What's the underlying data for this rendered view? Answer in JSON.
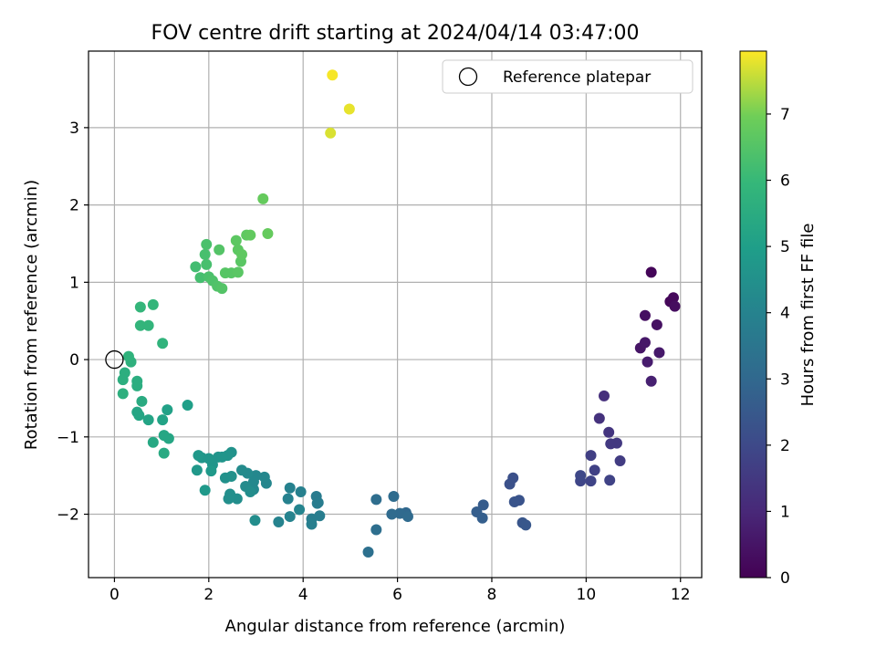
{
  "chart_data": {
    "type": "scatter",
    "title": "FOV centre drift starting at 2024/04/14 03:47:00",
    "xlabel": "Angular distance from reference (arcmin)",
    "ylabel": "Rotation from reference (arcmin)",
    "xlim": [
      -0.55,
      12.45
    ],
    "ylim": [
      -2.82,
      3.99
    ],
    "xticks": [
      0,
      2,
      4,
      6,
      8,
      10,
      12
    ],
    "yticks": [
      -2,
      -1,
      0,
      1,
      2,
      3
    ],
    "grid": true,
    "legend": {
      "placement": "top-right",
      "entries": [
        "Reference platepar"
      ]
    },
    "reference_point": {
      "x": 0,
      "y": 0
    },
    "colorbar": {
      "label": "Hours from first FF file",
      "colormap": "viridis",
      "range": [
        0,
        7.95
      ],
      "ticks": [
        0,
        1,
        2,
        3,
        4,
        5,
        6,
        7
      ]
    },
    "points": [
      {
        "x": 11.38,
        "y": 1.13,
        "h": 0.1
      },
      {
        "x": 11.78,
        "y": 0.75,
        "h": 0.15
      },
      {
        "x": 11.85,
        "y": 0.8,
        "h": 0.2
      },
      {
        "x": 11.88,
        "y": 0.69,
        "h": 0.3
      },
      {
        "x": 11.25,
        "y": 0.57,
        "h": 0.35
      },
      {
        "x": 11.5,
        "y": 0.45,
        "h": 0.4
      },
      {
        "x": 11.15,
        "y": 0.15,
        "h": 0.5
      },
      {
        "x": 11.25,
        "y": 0.22,
        "h": 0.55
      },
      {
        "x": 11.55,
        "y": 0.09,
        "h": 0.6
      },
      {
        "x": 11.3,
        "y": -0.03,
        "h": 0.7
      },
      {
        "x": 11.38,
        "y": -0.28,
        "h": 0.8
      },
      {
        "x": 10.38,
        "y": -0.47,
        "h": 1.2
      },
      {
        "x": 10.28,
        "y": -0.76,
        "h": 1.3
      },
      {
        "x": 10.48,
        "y": -0.94,
        "h": 1.4
      },
      {
        "x": 10.65,
        "y": -1.08,
        "h": 1.5
      },
      {
        "x": 10.52,
        "y": -1.09,
        "h": 1.5
      },
      {
        "x": 10.72,
        "y": -1.31,
        "h": 1.6
      },
      {
        "x": 10.1,
        "y": -1.24,
        "h": 1.7
      },
      {
        "x": 10.18,
        "y": -1.43,
        "h": 1.75
      },
      {
        "x": 10.5,
        "y": -1.56,
        "h": 1.8
      },
      {
        "x": 10.1,
        "y": -1.57,
        "h": 1.85
      },
      {
        "x": 9.88,
        "y": -1.57,
        "h": 1.9
      },
      {
        "x": 9.88,
        "y": -1.5,
        "h": 1.95
      },
      {
        "x": 8.45,
        "y": -1.53,
        "h": 2.2
      },
      {
        "x": 8.38,
        "y": -1.61,
        "h": 2.25
      },
      {
        "x": 8.58,
        "y": -1.82,
        "h": 2.3
      },
      {
        "x": 8.48,
        "y": -1.84,
        "h": 2.35
      },
      {
        "x": 8.65,
        "y": -2.11,
        "h": 2.4
      },
      {
        "x": 8.72,
        "y": -2.14,
        "h": 2.45
      },
      {
        "x": 7.82,
        "y": -1.88,
        "h": 2.6
      },
      {
        "x": 7.68,
        "y": -1.97,
        "h": 2.65
      },
      {
        "x": 7.8,
        "y": -2.05,
        "h": 2.7
      },
      {
        "x": 6.18,
        "y": -1.98,
        "h": 3.0
      },
      {
        "x": 6.05,
        "y": -1.99,
        "h": 3.05
      },
      {
        "x": 5.88,
        "y": -2.0,
        "h": 3.1
      },
      {
        "x": 6.22,
        "y": -2.03,
        "h": 3.1
      },
      {
        "x": 5.92,
        "y": -1.77,
        "h": 3.15
      },
      {
        "x": 5.55,
        "y": -1.81,
        "h": 3.2
      },
      {
        "x": 5.55,
        "y": -2.2,
        "h": 3.25
      },
      {
        "x": 5.38,
        "y": -2.49,
        "h": 3.3
      },
      {
        "x": 4.28,
        "y": -1.77,
        "h": 3.7
      },
      {
        "x": 4.32,
        "y": -1.85,
        "h": 3.75
      },
      {
        "x": 4.3,
        "y": -1.86,
        "h": 3.75
      },
      {
        "x": 4.35,
        "y": -2.02,
        "h": 3.8
      },
      {
        "x": 4.18,
        "y": -2.06,
        "h": 3.8
      },
      {
        "x": 4.18,
        "y": -2.13,
        "h": 3.85
      },
      {
        "x": 3.95,
        "y": -1.71,
        "h": 3.9
      },
      {
        "x": 3.72,
        "y": -1.66,
        "h": 3.95
      },
      {
        "x": 3.68,
        "y": -1.8,
        "h": 3.95
      },
      {
        "x": 3.72,
        "y": -2.03,
        "h": 4.0
      },
      {
        "x": 3.48,
        "y": -2.1,
        "h": 4.0
      },
      {
        "x": 3.92,
        "y": -1.94,
        "h": 4.05
      },
      {
        "x": 3.22,
        "y": -1.6,
        "h": 4.1
      },
      {
        "x": 3.18,
        "y": -1.52,
        "h": 4.15
      },
      {
        "x": 3.0,
        "y": -1.5,
        "h": 4.15
      },
      {
        "x": 2.95,
        "y": -1.58,
        "h": 4.2
      },
      {
        "x": 2.95,
        "y": -1.68,
        "h": 4.2
      },
      {
        "x": 2.82,
        "y": -1.47,
        "h": 4.25
      },
      {
        "x": 2.7,
        "y": -1.43,
        "h": 4.3
      },
      {
        "x": 2.78,
        "y": -1.64,
        "h": 4.3
      },
      {
        "x": 2.88,
        "y": -1.71,
        "h": 4.35
      },
      {
        "x": 2.98,
        "y": -2.08,
        "h": 4.35
      },
      {
        "x": 2.6,
        "y": -1.8,
        "h": 4.4
      },
      {
        "x": 2.45,
        "y": -1.74,
        "h": 4.45
      },
      {
        "x": 2.42,
        "y": -1.8,
        "h": 4.45
      },
      {
        "x": 2.48,
        "y": -1.51,
        "h": 4.5
      },
      {
        "x": 2.35,
        "y": -1.53,
        "h": 4.5
      },
      {
        "x": 2.48,
        "y": -1.2,
        "h": 4.55
      },
      {
        "x": 2.4,
        "y": -1.24,
        "h": 4.6
      },
      {
        "x": 2.2,
        "y": -1.26,
        "h": 4.6
      },
      {
        "x": 2.28,
        "y": -1.26,
        "h": 4.65
      },
      {
        "x": 2.08,
        "y": -1.36,
        "h": 4.65
      },
      {
        "x": 2.0,
        "y": -1.28,
        "h": 4.7
      },
      {
        "x": 1.85,
        "y": -1.27,
        "h": 4.7
      },
      {
        "x": 1.78,
        "y": -1.24,
        "h": 4.75
      },
      {
        "x": 1.75,
        "y": -1.43,
        "h": 4.75
      },
      {
        "x": 2.05,
        "y": -1.44,
        "h": 4.8
      },
      {
        "x": 1.92,
        "y": -1.69,
        "h": 4.8
      },
      {
        "x": 1.55,
        "y": -0.59,
        "h": 5.0
      },
      {
        "x": 1.12,
        "y": -0.65,
        "h": 5.1
      },
      {
        "x": 1.02,
        "y": -0.78,
        "h": 5.15
      },
      {
        "x": 0.72,
        "y": -0.78,
        "h": 5.2
      },
      {
        "x": 0.52,
        "y": -0.72,
        "h": 5.25
      },
      {
        "x": 0.48,
        "y": -0.68,
        "h": 5.25
      },
      {
        "x": 1.05,
        "y": -0.98,
        "h": 5.3
      },
      {
        "x": 1.15,
        "y": -1.02,
        "h": 5.3
      },
      {
        "x": 0.82,
        "y": -1.07,
        "h": 5.35
      },
      {
        "x": 1.05,
        "y": -1.21,
        "h": 5.4
      },
      {
        "x": 0.58,
        "y": -0.54,
        "h": 5.45
      },
      {
        "x": 0.48,
        "y": -0.34,
        "h": 5.55
      },
      {
        "x": 0.48,
        "y": -0.28,
        "h": 5.55
      },
      {
        "x": 0.18,
        "y": -0.26,
        "h": 5.6
      },
      {
        "x": 0.22,
        "y": -0.17,
        "h": 5.6
      },
      {
        "x": 0.18,
        "y": -0.44,
        "h": 5.65
      },
      {
        "x": 0.35,
        "y": -0.03,
        "h": 5.7
      },
      {
        "x": 0.3,
        "y": 0.04,
        "h": 5.75
      },
      {
        "x": 1.02,
        "y": 0.21,
        "h": 5.8
      },
      {
        "x": 0.55,
        "y": 0.44,
        "h": 5.85
      },
      {
        "x": 0.72,
        "y": 0.44,
        "h": 5.85
      },
      {
        "x": 0.55,
        "y": 0.68,
        "h": 5.9
      },
      {
        "x": 0.82,
        "y": 0.71,
        "h": 5.9
      },
      {
        "x": 1.72,
        "y": 1.2,
        "h": 6.2
      },
      {
        "x": 1.82,
        "y": 1.06,
        "h": 6.25
      },
      {
        "x": 1.92,
        "y": 1.36,
        "h": 6.3
      },
      {
        "x": 1.95,
        "y": 1.23,
        "h": 6.3
      },
      {
        "x": 1.95,
        "y": 1.49,
        "h": 6.35
      },
      {
        "x": 2.0,
        "y": 1.07,
        "h": 6.35
      },
      {
        "x": 2.08,
        "y": 1.02,
        "h": 6.4
      },
      {
        "x": 2.18,
        "y": 0.95,
        "h": 6.45
      },
      {
        "x": 2.28,
        "y": 0.92,
        "h": 6.5
      },
      {
        "x": 2.22,
        "y": 1.42,
        "h": 6.5
      },
      {
        "x": 2.35,
        "y": 1.12,
        "h": 6.55
      },
      {
        "x": 2.48,
        "y": 1.12,
        "h": 6.55
      },
      {
        "x": 2.62,
        "y": 1.13,
        "h": 6.6
      },
      {
        "x": 2.68,
        "y": 1.27,
        "h": 6.6
      },
      {
        "x": 2.62,
        "y": 1.42,
        "h": 6.65
      },
      {
        "x": 2.58,
        "y": 1.54,
        "h": 6.65
      },
      {
        "x": 2.7,
        "y": 1.36,
        "h": 6.7
      },
      {
        "x": 2.8,
        "y": 1.61,
        "h": 6.7
      },
      {
        "x": 2.88,
        "y": 1.61,
        "h": 6.75
      },
      {
        "x": 3.15,
        "y": 2.08,
        "h": 6.8
      },
      {
        "x": 3.25,
        "y": 1.63,
        "h": 6.8
      },
      {
        "x": 4.62,
        "y": 3.68,
        "h": 7.9
      },
      {
        "x": 4.98,
        "y": 3.24,
        "h": 7.8
      },
      {
        "x": 4.58,
        "y": 2.93,
        "h": 7.7
      }
    ]
  }
}
